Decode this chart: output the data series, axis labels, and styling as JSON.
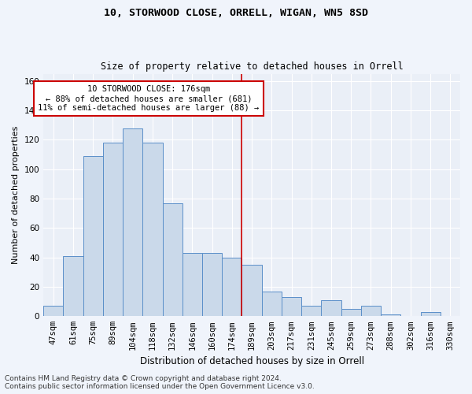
{
  "title1": "10, STORWOOD CLOSE, ORRELL, WIGAN, WN5 8SD",
  "title2": "Size of property relative to detached houses in Orrell",
  "xlabel": "Distribution of detached houses by size in Orrell",
  "ylabel": "Number of detached properties",
  "categories": [
    "47sqm",
    "61sqm",
    "75sqm",
    "89sqm",
    "104sqm",
    "118sqm",
    "132sqm",
    "146sqm",
    "160sqm",
    "174sqm",
    "189sqm",
    "203sqm",
    "217sqm",
    "231sqm",
    "245sqm",
    "259sqm",
    "273sqm",
    "288sqm",
    "302sqm",
    "316sqm",
    "330sqm"
  ],
  "values": [
    7,
    41,
    109,
    118,
    128,
    118,
    77,
    43,
    43,
    40,
    35,
    17,
    13,
    7,
    11,
    5,
    7,
    1,
    0,
    3,
    0
  ],
  "bar_color": "#cad9ea",
  "bar_edge_color": "#5b8fc9",
  "bg_color": "#eaeff7",
  "grid_color": "#ffffff",
  "fig_bg_color": "#f0f4fb",
  "vline_color": "#cc0000",
  "annotation_text": "10 STORWOOD CLOSE: 176sqm\n← 88% of detached houses are smaller (681)\n11% of semi-detached houses are larger (88) →",
  "annotation_box_color": "#cc0000",
  "ylim": [
    0,
    165
  ],
  "yticks": [
    0,
    20,
    40,
    60,
    80,
    100,
    120,
    140,
    160
  ],
  "footer1": "Contains HM Land Registry data © Crown copyright and database right 2024.",
  "footer2": "Contains public sector information licensed under the Open Government Licence v3.0.",
  "title1_fontsize": 9.5,
  "title2_fontsize": 8.5,
  "xlabel_fontsize": 8.5,
  "ylabel_fontsize": 8.0,
  "tick_fontsize": 7.5,
  "annotation_fontsize": 7.5,
  "footer_fontsize": 6.5
}
